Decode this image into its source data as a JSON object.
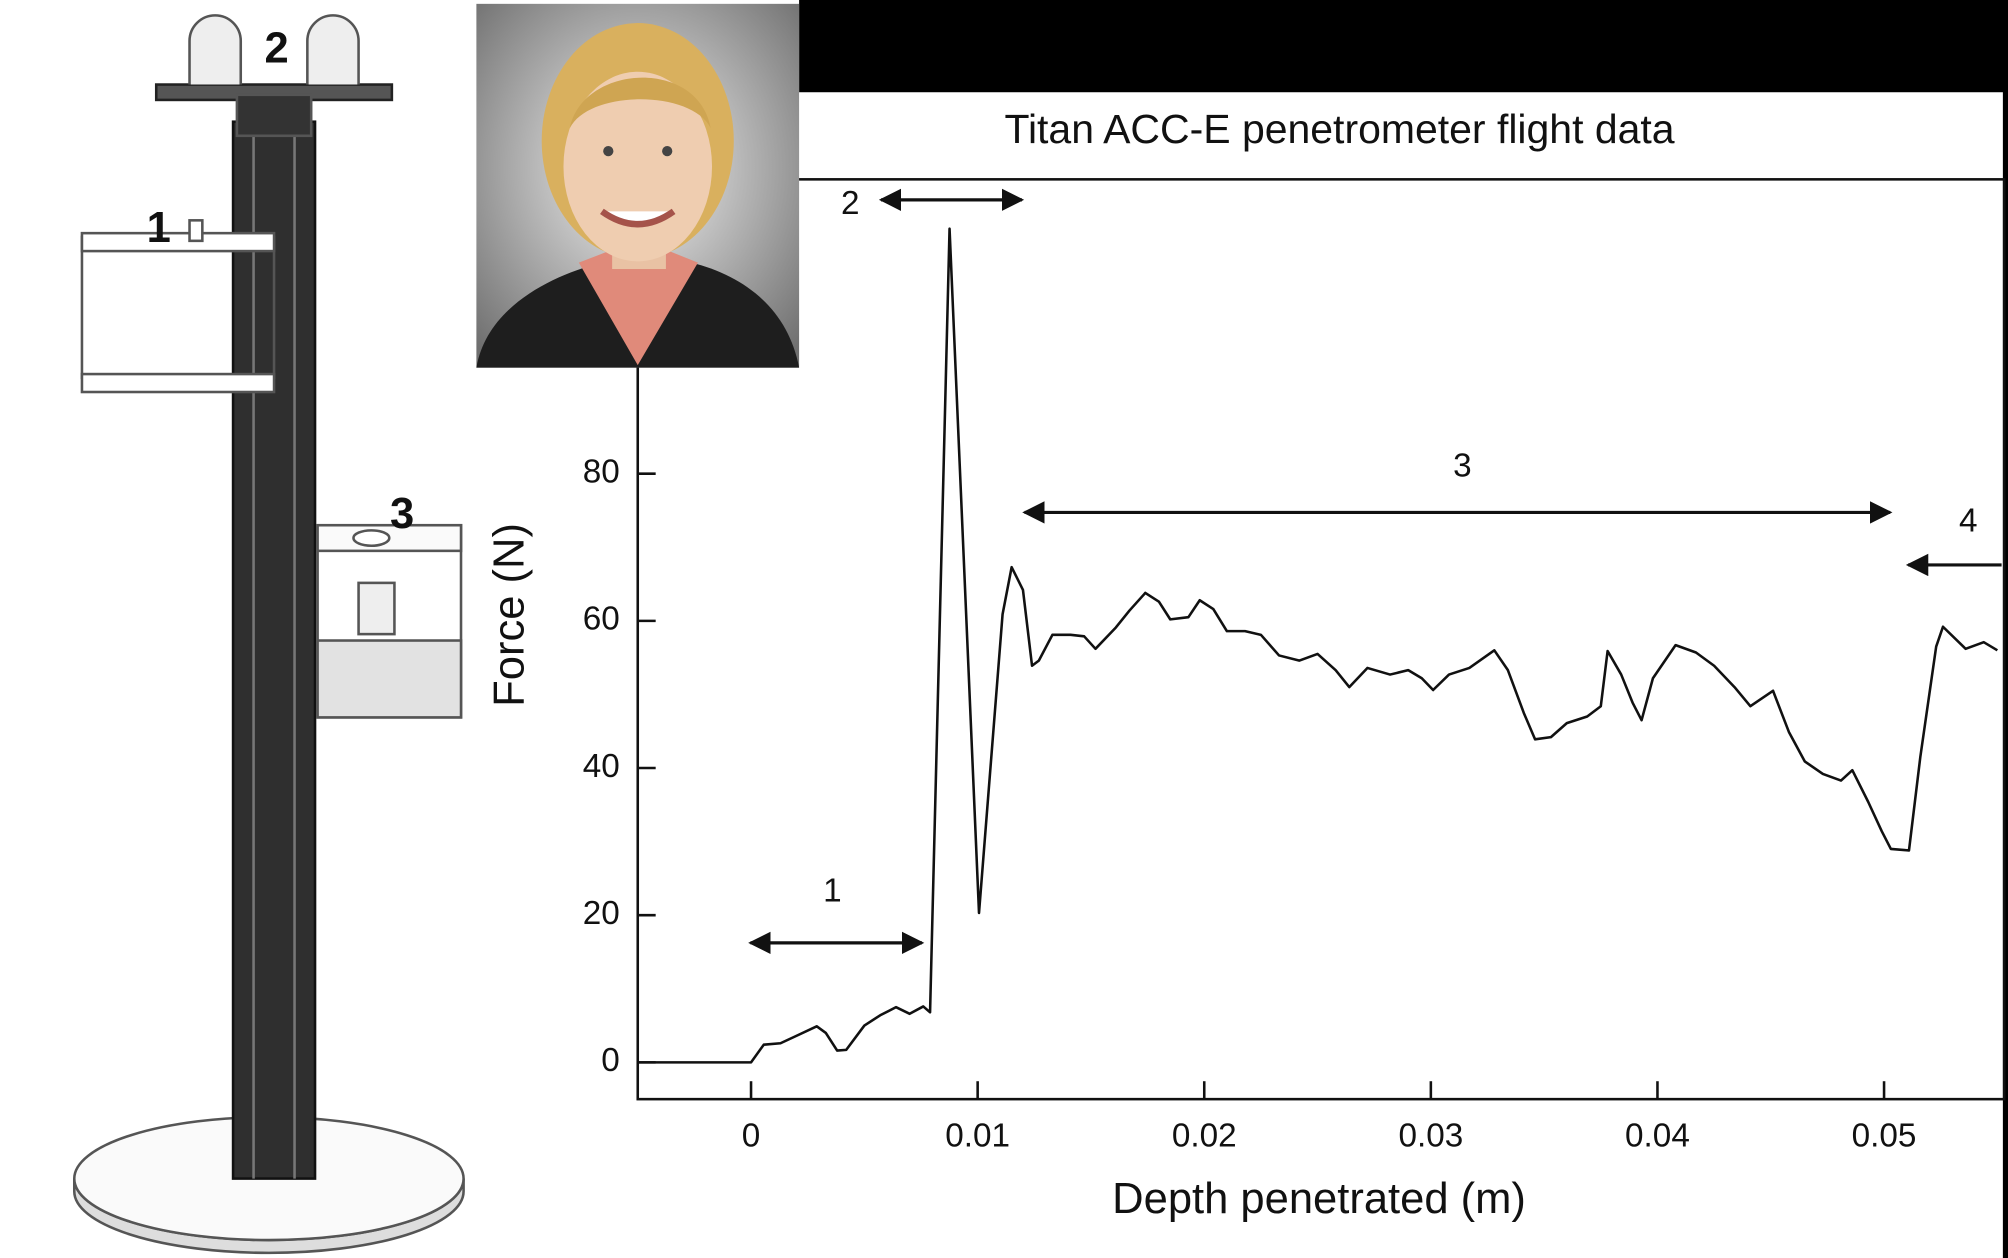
{
  "apparatus_labels": [
    "1",
    "2",
    "3"
  ],
  "chart_data": {
    "type": "line",
    "title": "Titan ACC-E penetrometer flight data",
    "x_label": "Depth penetrated (m)",
    "y_label": "Force (N)",
    "xlim": [
      -0.005,
      0.0553
    ],
    "ylim": [
      -5,
      120
    ],
    "xticks": [
      0,
      0.01,
      0.02,
      0.03,
      0.04,
      0.05
    ],
    "yticks": [
      0,
      20,
      40,
      60,
      80
    ],
    "color": "#111111",
    "annotations": [
      "1",
      "2",
      "3",
      "4"
    ],
    "x": [
      -0.005,
      0,
      0.00056,
      0.0013,
      0.002,
      0.0029,
      0.0033,
      0.0038,
      0.0042,
      0.005,
      0.0057,
      0.0064,
      0.007,
      0.0076,
      0.0079,
      0.00876,
      0.01006,
      0.0111,
      0.0115,
      0.012,
      0.0124,
      0.0127,
      0.0133,
      0.0141,
      0.0147,
      0.0152,
      0.0161,
      0.0167,
      0.0174,
      0.018,
      0.0185,
      0.0193,
      0.0198,
      0.0204,
      0.021,
      0.0218,
      0.0225,
      0.0233,
      0.0242,
      0.025,
      0.0258,
      0.0264,
      0.0272,
      0.0282,
      0.029,
      0.0296,
      0.0301,
      0.0308,
      0.0317,
      0.0328,
      0.0334,
      0.0341,
      0.0346,
      0.0353,
      0.036,
      0.0369,
      0.0375,
      0.0378,
      0.0384,
      0.0389,
      0.0393,
      0.0398,
      0.0408,
      0.0417,
      0.0425,
      0.0434,
      0.0441,
      0.0451,
      0.0458,
      0.0465,
      0.0473,
      0.0481,
      0.0486,
      0.0493,
      0.0499,
      0.0503,
      0.0511,
      0.0516,
      0.0523,
      0.0526,
      0.0536,
      0.0544,
      0.055
    ],
    "values": [
      0,
      0,
      2.4,
      2.6,
      3.6,
      4.9,
      4,
      1.6,
      1.7,
      5,
      6.4,
      7.5,
      6.6,
      7.6,
      6.8,
      113.3,
      20.3,
      60.9,
      67.3,
      64.2,
      53.9,
      54.6,
      58.1,
      58.1,
      57.9,
      56.2,
      59.1,
      61.4,
      63.8,
      62.6,
      60.2,
      60.5,
      62.8,
      61.6,
      58.6,
      58.6,
      58.1,
      55.3,
      54.6,
      55.5,
      53.3,
      51,
      53.6,
      52.7,
      53.3,
      52.2,
      50.6,
      52.7,
      53.6,
      56,
      53.3,
      47.5,
      43.9,
      44.2,
      46.1,
      47,
      48.4,
      55.9,
      52.7,
      48.9,
      46.5,
      52.2,
      56.7,
      55.7,
      53.9,
      51,
      48.4,
      50.5,
      44.9,
      40.9,
      39.2,
      38.3,
      39.7,
      35.4,
      31.4,
      29,
      28.8,
      41.5,
      56.5,
      59.2,
      56.2,
      57.1,
      56
    ]
  }
}
